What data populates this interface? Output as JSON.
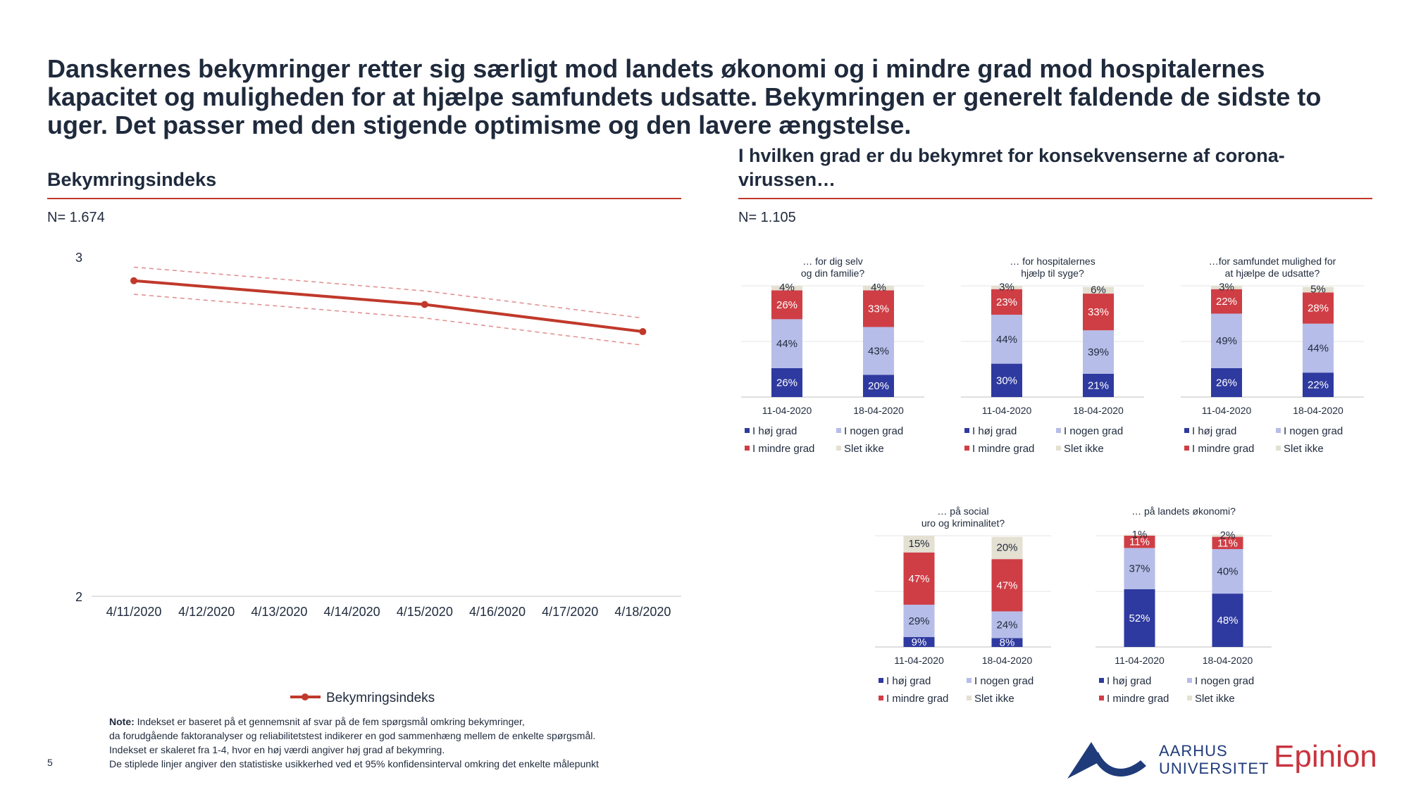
{
  "headline": "Danskernes bekymringer retter sig særligt mod landets økonomi og i mindre grad mod hospitalernes kapacitet og muligheden for at hjælpe samfundets udsatte. Bekymringen er generelt faldende de sidste to uger. Det passer med den stigende optimisme og den lavere ængstelse.",
  "left": {
    "title": "Bekymringsindeks",
    "n": "N= 1.674"
  },
  "right": {
    "title": "I hvilken grad er du bekymret for konsekvenserne af corona-virussen…",
    "n": "N= 1.105"
  },
  "note": {
    "label": "Note:",
    "line1": " Indekset er baseret på et gennemsnit af svar på de fem spørgsmål omkring bekymringer,",
    "line2": "da forudgående faktoranalyser og reliabilitetstest indikerer en god sammenhæng mellem de enkelte spørgsmål.",
    "line3": "Indekset er skaleret fra 1-4, hvor en høj værdi angiver høj grad af bekymring.",
    "line4": "De stiplede linjer angiver den statistiske usikkerhed ved et 95% konfidensinterval omkring det enkelte målepunkt"
  },
  "page_number": "5",
  "logos": {
    "au_line1": "AARHUS",
    "au_line2": "UNIVERSITET",
    "epinion": "Epinion"
  },
  "colors": {
    "accent": "#c0392b",
    "hoj": "#2e3a9f",
    "nogen": "#b6bde8",
    "mindre": "#cf3e45",
    "slet": "#e4e0d2"
  },
  "chart_data": [
    {
      "type": "line",
      "x": [
        "4/11/2020",
        "4/12/2020",
        "4/13/2020",
        "4/14/2020",
        "4/15/2020",
        "4/16/2020",
        "4/17/2020",
        "4/18/2020"
      ],
      "ylim": [
        2,
        3
      ],
      "yticks": [
        "2",
        "3"
      ],
      "series": [
        {
          "name": "Bekymringsindeks",
          "points": [
            [
              "4/11/2020",
              2.93
            ],
            [
              "4/15/2020",
              2.86
            ],
            [
              "4/18/2020",
              2.78
            ]
          ]
        }
      ],
      "ci_upper": [
        2.97,
        2.9,
        2.82
      ],
      "ci_lower": [
        2.89,
        2.82,
        2.74
      ],
      "legend": "bottom"
    },
    {
      "type": "bar",
      "stacked": true,
      "title": "… for dig selv og din familie?",
      "categories": [
        "11-04-2020",
        "18-04-2020"
      ],
      "series": [
        {
          "name": "I høj grad",
          "values": [
            26,
            20
          ]
        },
        {
          "name": "I nogen grad",
          "values": [
            44,
            43
          ]
        },
        {
          "name": "I mindre grad",
          "values": [
            26,
            33
          ]
        },
        {
          "name": "Slet ikke",
          "values": [
            4,
            4
          ]
        }
      ]
    },
    {
      "type": "bar",
      "stacked": true,
      "title": "… for hospitalernes hjælp til syge?",
      "categories": [
        "11-04-2020",
        "18-04-2020"
      ],
      "series": [
        {
          "name": "I høj grad",
          "values": [
            30,
            21
          ]
        },
        {
          "name": "I nogen grad",
          "values": [
            44,
            39
          ]
        },
        {
          "name": "I mindre grad",
          "values": [
            23,
            33
          ]
        },
        {
          "name": "Slet ikke",
          "values": [
            3,
            6
          ]
        }
      ]
    },
    {
      "type": "bar",
      "stacked": true,
      "title": "…for samfundet mulighed for at hjælpe de udsatte?",
      "categories": [
        "11-04-2020",
        "18-04-2020"
      ],
      "series": [
        {
          "name": "I høj grad",
          "values": [
            26,
            22
          ]
        },
        {
          "name": "I nogen grad",
          "values": [
            49,
            44
          ]
        },
        {
          "name": "I mindre grad",
          "values": [
            22,
            28
          ]
        },
        {
          "name": "Slet ikke",
          "values": [
            3,
            5
          ]
        }
      ]
    },
    {
      "type": "bar",
      "stacked": true,
      "title": "… på social uro og kriminalitet?",
      "categories": [
        "11-04-2020",
        "18-04-2020"
      ],
      "series": [
        {
          "name": "I høj grad",
          "values": [
            9,
            8
          ]
        },
        {
          "name": "I nogen grad",
          "values": [
            29,
            24
          ]
        },
        {
          "name": "I mindre grad",
          "values": [
            47,
            47
          ]
        },
        {
          "name": "Slet ikke",
          "values": [
            15,
            20
          ]
        }
      ]
    },
    {
      "type": "bar",
      "stacked": true,
      "title": "… på landets økonomi?",
      "categories": [
        "11-04-2020",
        "18-04-2020"
      ],
      "series": [
        {
          "name": "I høj grad",
          "values": [
            52,
            48
          ]
        },
        {
          "name": "I nogen grad",
          "values": [
            37,
            40
          ]
        },
        {
          "name": "I mindre grad",
          "values": [
            11,
            11
          ]
        },
        {
          "name": "Slet ikke",
          "values": [
            1,
            2
          ]
        }
      ]
    }
  ]
}
